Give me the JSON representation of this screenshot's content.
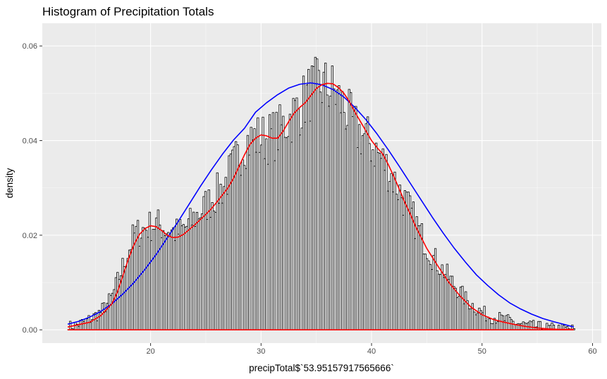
{
  "chart_data": {
    "type": "bar",
    "title": "Histogram of Precipitation Totals",
    "xlabel": "precipTotal$`53.95157917565666`",
    "ylabel": "density",
    "xlim": [
      10.2,
      60.8
    ],
    "ylim": [
      -0.0028,
      0.0648
    ],
    "x_ticks": [
      20,
      30,
      40,
      50,
      60
    ],
    "y_ticks": [
      0.0,
      0.02,
      0.04,
      0.06
    ],
    "x_tick_labels": [
      "20",
      "30",
      "40",
      "50",
      "60"
    ],
    "y_tick_labels": [
      "0.00",
      "0.02",
      "0.04",
      "0.06"
    ],
    "grid": true,
    "bins": {
      "x_start": 12.5,
      "x_end": 58.4,
      "count": 300,
      "profile_points": [
        [
          12.5,
          0.0006
        ],
        [
          13.5,
          0.0012
        ],
        [
          14.5,
          0.0022
        ],
        [
          15.5,
          0.0038
        ],
        [
          16.5,
          0.0068
        ],
        [
          17.5,
          0.0135
        ],
        [
          18.5,
          0.02
        ],
        [
          19.5,
          0.0215
        ],
        [
          20.5,
          0.0225
        ],
        [
          21.5,
          0.0212
        ],
        [
          22.5,
          0.0205
        ],
        [
          23.5,
          0.0222
        ],
        [
          24.5,
          0.025
        ],
        [
          25.5,
          0.0275
        ],
        [
          26.5,
          0.03
        ],
        [
          27.5,
          0.0345
        ],
        [
          28.5,
          0.0395
        ],
        [
          29.5,
          0.0405
        ],
        [
          30.5,
          0.0405
        ],
        [
          31.5,
          0.0415
        ],
        [
          32.5,
          0.0445
        ],
        [
          33.5,
          0.047
        ],
        [
          34.5,
          0.0505
        ],
        [
          35.5,
          0.0515
        ],
        [
          36.5,
          0.0505
        ],
        [
          37.5,
          0.047
        ],
        [
          38.5,
          0.0425
        ],
        [
          39.5,
          0.0405
        ],
        [
          40.5,
          0.0375
        ],
        [
          41.5,
          0.034
        ],
        [
          42.5,
          0.0295
        ],
        [
          43.5,
          0.025
        ],
        [
          44.5,
          0.02
        ],
        [
          45.5,
          0.0155
        ],
        [
          46.5,
          0.0125
        ],
        [
          47.5,
          0.0095
        ],
        [
          48.5,
          0.0065
        ],
        [
          49.5,
          0.0045
        ],
        [
          50.5,
          0.003
        ],
        [
          51.5,
          0.0025
        ],
        [
          52.5,
          0.0018
        ],
        [
          53.5,
          0.0012
        ],
        [
          54.5,
          0.0008
        ],
        [
          55.5,
          0.0005
        ],
        [
          56.5,
          0.0003
        ],
        [
          57.5,
          0.0002
        ],
        [
          58.4,
          0.0001
        ]
      ],
      "fill": "#ffffff",
      "stroke": "#000000"
    },
    "series": [
      {
        "type": "line",
        "color": "#0000ff",
        "x": [
          12.5,
          13.5,
          14.5,
          15.5,
          16.5,
          17.5,
          18.5,
          19.5,
          20.5,
          21.5,
          22.5,
          23.5,
          24.5,
          25.5,
          26.5,
          27.5,
          28.5,
          29.5,
          30.5,
          31.5,
          32.5,
          33.5,
          34.5,
          35.5,
          36.5,
          37.5,
          38.5,
          39.5,
          40.5,
          41.5,
          42.5,
          43.5,
          44.5,
          45.5,
          46.5,
          47.5,
          48.5,
          49.5,
          50.5,
          51.5,
          52.5,
          53.5,
          54.5,
          55.5,
          56.5,
          57.5,
          58.3
        ],
        "y": [
          0.0012,
          0.0018,
          0.0027,
          0.0039,
          0.0055,
          0.0076,
          0.01,
          0.0128,
          0.0159,
          0.0194,
          0.0229,
          0.0266,
          0.0303,
          0.0338,
          0.0371,
          0.0401,
          0.0426,
          0.046,
          0.048,
          0.0497,
          0.0511,
          0.0519,
          0.0522,
          0.0518,
          0.0508,
          0.0492,
          0.047,
          0.0444,
          0.0414,
          0.0381,
          0.0346,
          0.031,
          0.0274,
          0.0238,
          0.0204,
          0.0172,
          0.0143,
          0.0116,
          0.0094,
          0.0074,
          0.0057,
          0.0044,
          0.0033,
          0.0024,
          0.0017,
          0.0011,
          0.0006
        ]
      },
      {
        "type": "line",
        "color": "#ff0000",
        "x": [
          12.5,
          14.5,
          15.5,
          16.5,
          17.0,
          17.5,
          18.0,
          18.5,
          19.0,
          19.5,
          20.0,
          20.5,
          21.0,
          21.5,
          22.0,
          22.5,
          23.0,
          23.5,
          24.0,
          24.5,
          25.0,
          25.5,
          26.0,
          26.5,
          27.0,
          27.5,
          28.0,
          28.5,
          29.0,
          29.5,
          30.0,
          30.5,
          31.0,
          31.5,
          32.0,
          32.5,
          33.0,
          33.5,
          34.0,
          34.5,
          35.0,
          35.5,
          36.0,
          36.5,
          37.0,
          37.5,
          38.0,
          38.5,
          39.0,
          39.5,
          40.0,
          40.5,
          41.0,
          41.5,
          42.0,
          42.5,
          43.0,
          43.5,
          44.0,
          44.5,
          45.0,
          46.0,
          47.0,
          48.0,
          49.0,
          50.0,
          51.0,
          52.0,
          53.0,
          54.0,
          55.0,
          56.0,
          57.0,
          58.3
        ],
        "y": [
          0.0006,
          0.0016,
          0.003,
          0.0055,
          0.008,
          0.0115,
          0.015,
          0.018,
          0.0202,
          0.0214,
          0.022,
          0.0218,
          0.021,
          0.02,
          0.0195,
          0.0196,
          0.0202,
          0.0212,
          0.0222,
          0.0233,
          0.0244,
          0.0256,
          0.027,
          0.0285,
          0.03,
          0.032,
          0.0345,
          0.037,
          0.0392,
          0.0405,
          0.0412,
          0.041,
          0.0405,
          0.0405,
          0.042,
          0.044,
          0.0458,
          0.047,
          0.048,
          0.0495,
          0.051,
          0.0518,
          0.0521,
          0.052,
          0.0512,
          0.05,
          0.0482,
          0.046,
          0.044,
          0.042,
          0.04,
          0.0385,
          0.0372,
          0.035,
          0.0325,
          0.0298,
          0.027,
          0.0245,
          0.0218,
          0.0195,
          0.0172,
          0.0135,
          0.01,
          0.0072,
          0.0048,
          0.0032,
          0.0022,
          0.0016,
          0.0011,
          0.0007,
          0.0004,
          0.0002,
          0.0001,
          0.0001
        ]
      },
      {
        "type": "line",
        "color": "#ff0000",
        "x": [
          12.5,
          58.3
        ],
        "y": [
          0.0,
          0.0
        ]
      }
    ]
  }
}
